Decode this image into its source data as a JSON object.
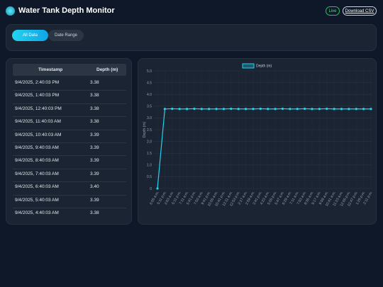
{
  "header": {
    "title": "Water Tank Depth Monitor",
    "status": "Live",
    "download": "Download CSV"
  },
  "tabs": [
    "All Data",
    "Date Range"
  ],
  "table": {
    "columns": [
      "Timestamp",
      "Depth (m)"
    ],
    "rows": [
      [
        "9/4/2025, 2:40:03 PM",
        "3.38"
      ],
      [
        "9/4/2025, 1:40:03 PM",
        "3.38"
      ],
      [
        "9/4/2025, 12:40:03 PM",
        "3.38"
      ],
      [
        "9/4/2025, 11:40:03 AM",
        "3.38"
      ],
      [
        "9/4/2025, 10:40:03 AM",
        "3.39"
      ],
      [
        "9/4/2025, 9:40:03 AM",
        "3.39"
      ],
      [
        "9/4/2025, 8:40:03 AM",
        "3.39"
      ],
      [
        "9/4/2025, 7:40:03 AM",
        "3.39"
      ],
      [
        "9/4/2025, 6:40:03 AM",
        "3.40"
      ],
      [
        "9/4/2025, 5:40:03 AM",
        "3.39"
      ],
      [
        "9/4/2025, 4:40:03 AM",
        "3.38"
      ]
    ]
  },
  "chart_data": {
    "type": "line",
    "ylabel": "Depth (m)",
    "categories": [
      "6:05 a.m.",
      "5:11 p.m.",
      "3:53 a.m.",
      "5:11 p.m.",
      "7:11 a.m.",
      "5:41 p.m.",
      "7:50 a.m.",
      "9:41 p.m.",
      "10:05 a.m.",
      "10:41 p.m.",
      "12:11 a.m.",
      "12:53 p.m.",
      "2:17 a.m.",
      "2:59 a.m.",
      "3:41 p.m.",
      "4:23 a.m.",
      "5:05 p.m.",
      "5:47 a.m.",
      "6:29 a.m.",
      "7:11 a.m.",
      "7:53 a.m.",
      "8:35 a.m.",
      "9:17 a.m.",
      "9:59 a.m.",
      "10:41 a.m.",
      "11:23 a.m.",
      "12:05 p.m.",
      "12:47 p.m.",
      "1:29 p.m.",
      "2:11 p.m."
    ],
    "series": [
      {
        "name": "Depth (m)",
        "color": "#22d3ee",
        "values": [
          0,
          3.38,
          3.39,
          3.38,
          3.38,
          3.39,
          3.38,
          3.38,
          3.38,
          3.38,
          3.39,
          3.38,
          3.38,
          3.38,
          3.39,
          3.38,
          3.38,
          3.39,
          3.38,
          3.38,
          3.39,
          3.38,
          3.38,
          3.39,
          3.38,
          3.38,
          3.38,
          3.38,
          3.38,
          3.38
        ]
      }
    ],
    "ylim": [
      0,
      5
    ],
    "yticks": [
      0,
      0.5,
      {
        "value": 1,
        "label": "1.0"
      },
      1.5,
      {
        "value": 2,
        "label": "2.0"
      },
      2.5,
      {
        "value": 3,
        "label": "3.0"
      },
      3.5,
      {
        "value": 4,
        "label": "4.0"
      },
      4.5,
      {
        "value": 5,
        "label": "5.0"
      }
    ],
    "grid": true
  }
}
